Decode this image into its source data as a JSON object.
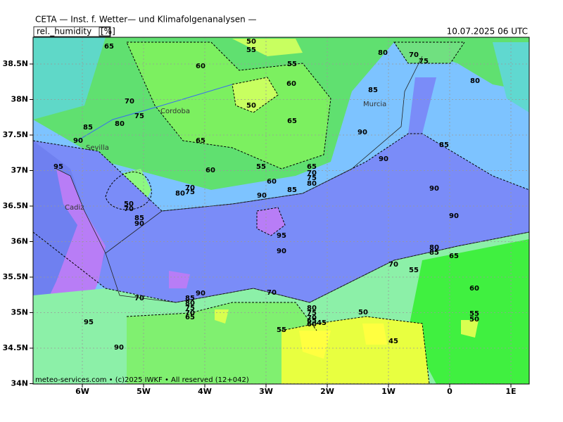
{
  "header": {
    "title": "CETA — Inst. f. Wetter— und Klimafolgenanalysen —",
    "variable": "rel._humidity",
    "unit": "[%]",
    "valid_time": "10.07.2025 06 UTC"
  },
  "lat_labels": [
    "38.5N",
    "38N",
    "37.5N",
    "37N",
    "36.5N",
    "36N",
    "35.5N",
    "35N",
    "34.5N",
    "34N"
  ],
  "lon_labels": [
    "6W",
    "5W",
    "4W",
    "3W",
    "2W",
    "1W",
    "0",
    "1E"
  ],
  "cities": [
    "Cordoba",
    "Sevilla",
    "Murcia",
    "Cadiz"
  ],
  "contour_labels": [
    65,
    50,
    55,
    80,
    70,
    75,
    60,
    55,
    60,
    80,
    85,
    70,
    50,
    75,
    65,
    85,
    80,
    90,
    90,
    65,
    85,
    90,
    95,
    60,
    55,
    65,
    70,
    75,
    80,
    60,
    70,
    75,
    80,
    85,
    90,
    90,
    50,
    70,
    85,
    90,
    90,
    95,
    90,
    80,
    85,
    65,
    70,
    55,
    70,
    90,
    70,
    85,
    80,
    75,
    70,
    65,
    80,
    75,
    70,
    65,
    60,
    45,
    50,
    60,
    55,
    50,
    95,
    55,
    45,
    90
  ],
  "footer": "meteo-services.com • (c)2025 IWKF • All reserved (12+042)"
}
